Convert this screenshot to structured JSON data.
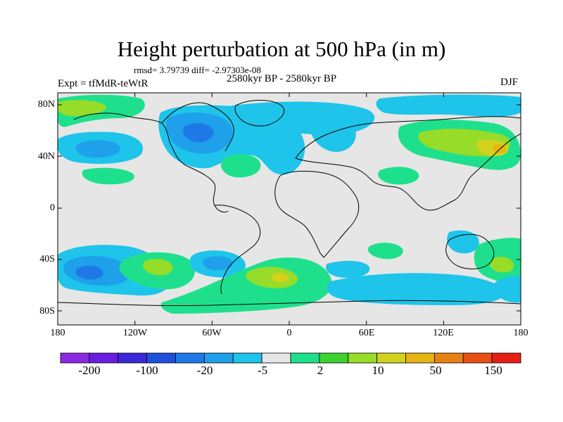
{
  "title": "Height perturbation at 500 hPa (in m)",
  "stats": "rmsd= 3.79739 diff= -2.97303e-08",
  "experiment": "Expt = tfMdR-teWtR",
  "period": "2580kyr BP - 2580kyr BP",
  "season": "DJF",
  "lat_labels": [
    "80N",
    "40N",
    "0",
    "40S",
    "80S"
  ],
  "lon_labels": [
    "180",
    "120W",
    "60W",
    "0",
    "60E",
    "120E",
    "180"
  ],
  "colorbar": {
    "colors": [
      "#8a2be2",
      "#6a1ee0",
      "#3c28d8",
      "#1e50dc",
      "#1e78e6",
      "#1ea0eb",
      "#1ec4ea",
      "#e6e6e6",
      "#1ee08c",
      "#3cd232",
      "#96dc28",
      "#d2d21e",
      "#e6b414",
      "#e68214",
      "#e65014",
      "#e61e14"
    ],
    "labels": [
      "-200",
      "-100",
      "-20",
      "-5",
      "2",
      "10",
      "50",
      "150"
    ]
  },
  "colors": {
    "background": "#e6e6e6",
    "cyan": "#1ec4ea",
    "light_blue": "#1ea0eb",
    "blue": "#1e78e6",
    "green": "#1ee08c",
    "lime": "#96dc28",
    "yellow": "#d2d21e",
    "orange": "#e6b414"
  }
}
